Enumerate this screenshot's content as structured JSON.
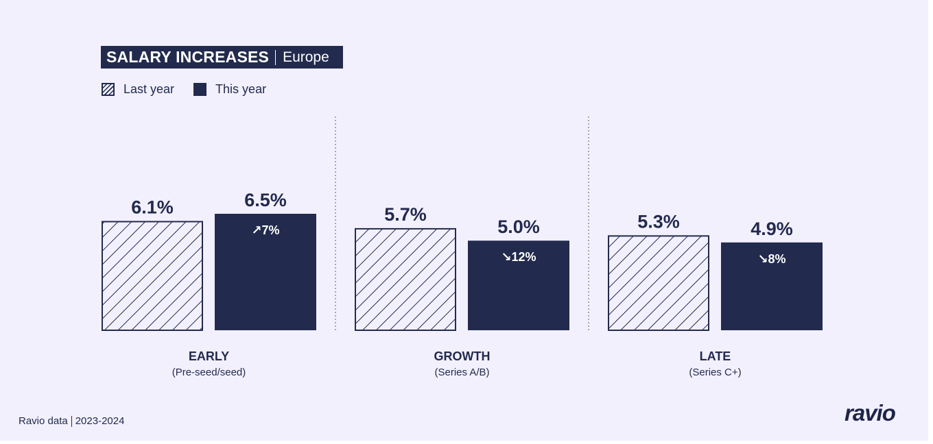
{
  "title": {
    "main": "SALARY INCREASES",
    "region": "Europe"
  },
  "legend": {
    "last_year": "Last year",
    "this_year": "This year"
  },
  "colors": {
    "background": "#f2f0fd",
    "bar": "#222a4d",
    "text": "#222a4d"
  },
  "footer": {
    "source": "Ravio data",
    "period": "2023-2024"
  },
  "logo": "ravio",
  "chart_data": {
    "type": "bar",
    "categories": [
      "EARLY",
      "GROWTH",
      "LATE"
    ],
    "category_notes": [
      "(Pre-seed/seed)",
      "(Series A/B)",
      "(Series C+)"
    ],
    "series": [
      {
        "name": "Last year",
        "values": [
          6.1,
          5.7,
          5.3
        ],
        "labels": [
          "6.1%",
          "5.7%",
          "5.3%"
        ],
        "style": "hatched"
      },
      {
        "name": "This year",
        "values": [
          6.5,
          5.0,
          4.9
        ],
        "labels": [
          "6.5%",
          "5.0%",
          "4.9%"
        ],
        "style": "solid"
      }
    ],
    "changes": [
      {
        "direction": "up",
        "arrow": "↗",
        "label": "7%"
      },
      {
        "direction": "down",
        "arrow": "↘",
        "label": "12%"
      },
      {
        "direction": "down",
        "arrow": "↘",
        "label": "8%"
      }
    ],
    "ylim": [
      0,
      6.5
    ],
    "grid": false,
    "legend_position": "top-left"
  }
}
